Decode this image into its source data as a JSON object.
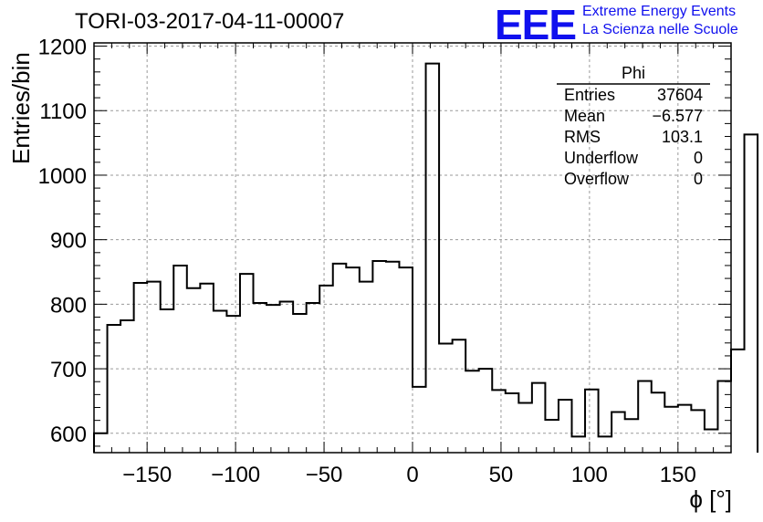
{
  "title": "TORI-03-2017-04-11-00007",
  "logo": {
    "text": "EEE",
    "line1": "Extreme Energy Events",
    "line2": "La Scienza nelle Scuole"
  },
  "stats": {
    "name": "Phi",
    "rows": [
      {
        "label": "Entries",
        "value": "37604"
      },
      {
        "label": "Mean",
        "value": "−6.577"
      },
      {
        "label": "RMS",
        "value": "103.1"
      },
      {
        "label": "Underflow",
        "value": "0"
      },
      {
        "label": "Overflow",
        "value": "0"
      }
    ]
  },
  "chart_data": {
    "type": "bar",
    "xlabel": "ϕ [°]",
    "ylabel": "Entries/bin",
    "xlim": [
      -180,
      180
    ],
    "ylim": [
      570,
      1205
    ],
    "xticks": [
      -150,
      -100,
      -50,
      0,
      50,
      100,
      150
    ],
    "yticks": [
      600,
      700,
      800,
      900,
      1000,
      1100,
      1200
    ],
    "grid": true,
    "bin_edges_start": -180,
    "bin_width": 7.5,
    "values": [
      600,
      768,
      775,
      833,
      835,
      792,
      860,
      825,
      832,
      790,
      782,
      847,
      802,
      799,
      804,
      785,
      802,
      829,
      863,
      857,
      835,
      867,
      866,
      857,
      672,
      1173,
      739,
      745,
      697,
      700,
      667,
      662,
      647,
      678,
      621,
      652,
      595,
      668,
      595,
      633,
      622,
      681,
      663,
      641,
      644,
      636,
      606,
      681,
      730,
      1063
    ],
    "line_color": "#000000",
    "grid_color": "#9a9a9a"
  }
}
